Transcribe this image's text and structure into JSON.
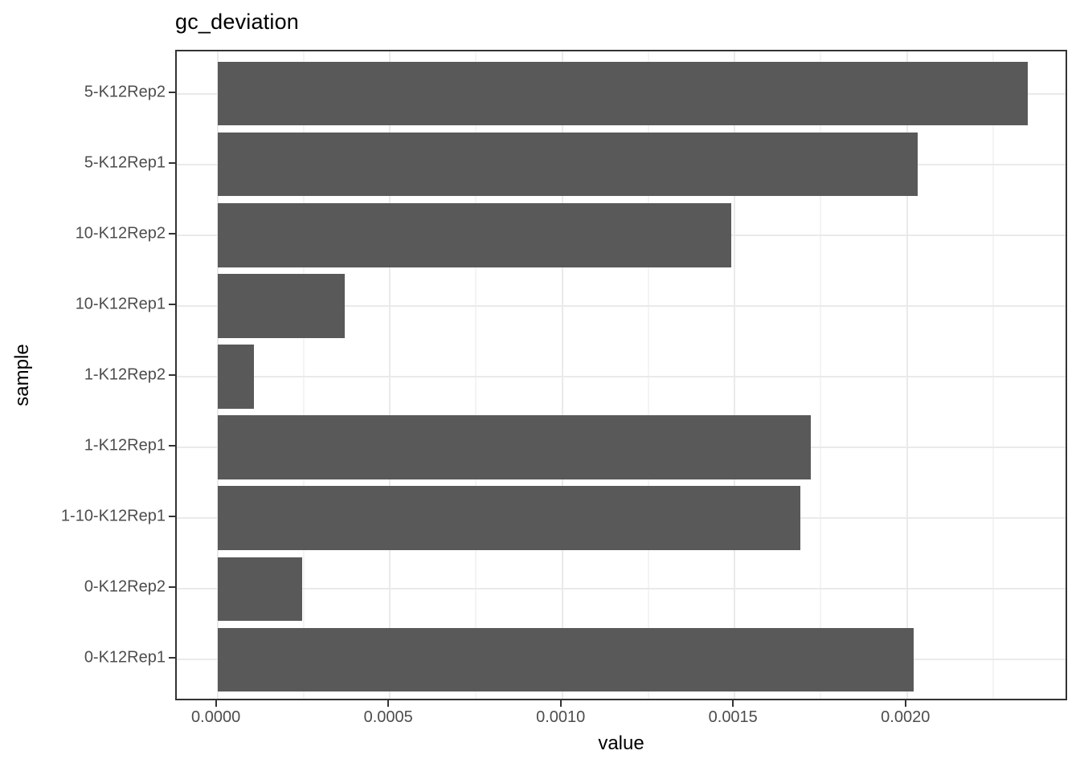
{
  "chart_data": {
    "type": "bar",
    "orientation": "horizontal",
    "title": "gc_deviation",
    "xlabel": "value",
    "ylabel": "sample",
    "legend": "none",
    "categories_top_to_bottom": [
      "5-K12Rep2",
      "5-K12Rep1",
      "10-K12Rep2",
      "10-K12Rep1",
      "1-K12Rep2",
      "1-K12Rep1",
      "1-10-K12Rep1",
      "0-K12Rep2",
      "0-K12Rep1"
    ],
    "values": [
      0.00235,
      0.00203,
      0.00149,
      0.00037,
      0.000105,
      0.00172,
      0.00169,
      0.000246,
      0.00202
    ],
    "xlim": [
      -0.000118,
      0.002469
    ],
    "x_major_ticks": [
      {
        "value": 0.0,
        "label": "0.0000"
      },
      {
        "value": 0.0005,
        "label": "0.0005"
      },
      {
        "value": 0.001,
        "label": "0.0010"
      },
      {
        "value": 0.0015,
        "label": "0.0015"
      },
      {
        "value": 0.002,
        "label": "0.0020"
      }
    ],
    "x_minor_ticks": [
      0.00025,
      0.00075,
      0.00125,
      0.00175,
      0.00225
    ],
    "grid": {
      "vertical": "major+minor",
      "horizontal": "major-at-category-centers"
    },
    "bar_width_fraction": 0.9,
    "colors": {
      "bar": "#595959",
      "grid_major": "#eaeaea",
      "grid_minor": "#f4f4f4",
      "panel_border": "#333333",
      "tick_label": "#4d4d4d",
      "axis_title": "#000000",
      "title": "#000000",
      "background": "#ffffff"
    }
  }
}
